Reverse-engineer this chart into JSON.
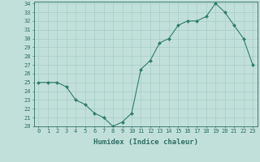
{
  "x": [
    0,
    1,
    2,
    3,
    4,
    5,
    6,
    7,
    8,
    9,
    10,
    11,
    12,
    13,
    14,
    15,
    16,
    17,
    18,
    19,
    20,
    21,
    22,
    23
  ],
  "y": [
    25,
    25,
    25,
    24.5,
    23,
    22.5,
    21.5,
    21,
    20,
    20.5,
    21.5,
    26.5,
    27.5,
    29.5,
    30,
    31.5,
    32,
    32,
    32.5,
    34,
    33,
    31.5,
    30,
    27
  ],
  "line_color": "#2e7d6e",
  "marker_color": "#2e7d6e",
  "bg_color": "#c2e0da",
  "grid_color": "#a8ccc6",
  "axis_color": "#2e6e64",
  "xlabel": "Humidex (Indice chaleur)",
  "ylabel": "",
  "xlim": [
    -0.5,
    23.5
  ],
  "ylim": [
    20,
    34.2
  ],
  "yticks": [
    20,
    21,
    22,
    23,
    24,
    25,
    26,
    27,
    28,
    29,
    30,
    31,
    32,
    33,
    34
  ],
  "xticks": [
    0,
    1,
    2,
    3,
    4,
    5,
    6,
    7,
    8,
    9,
    10,
    11,
    12,
    13,
    14,
    15,
    16,
    17,
    18,
    19,
    20,
    21,
    22,
    23
  ],
  "tick_fontsize": 5.0,
  "label_fontsize": 6.5
}
